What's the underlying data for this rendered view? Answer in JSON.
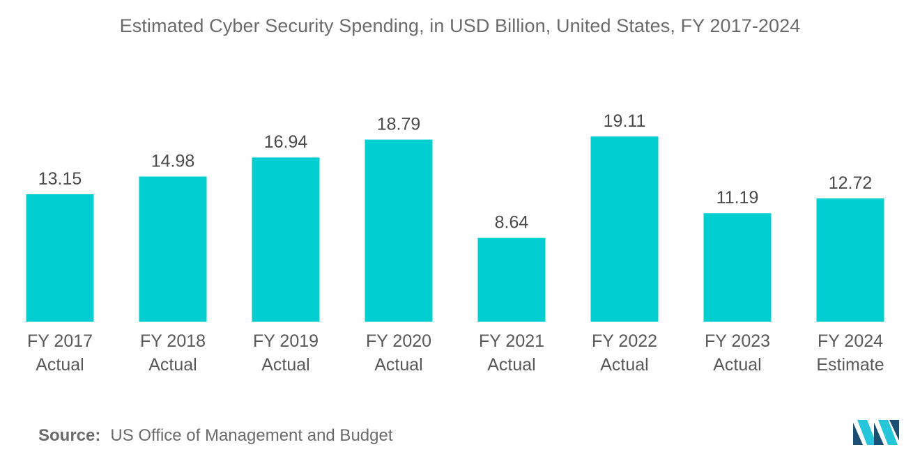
{
  "chart_data": {
    "type": "bar",
    "title": "Estimated Cyber Security Spending, in USD Billion, United States, FY 2017-2024",
    "categories": [
      [
        "FY 2017",
        "Actual"
      ],
      [
        "FY 2018",
        "Actual"
      ],
      [
        "FY 2019",
        "Actual"
      ],
      [
        "FY 2020",
        "Actual"
      ],
      [
        "FY 2021",
        "Actual"
      ],
      [
        "FY 2022",
        "Actual"
      ],
      [
        "FY 2023",
        "Actual"
      ],
      [
        "FY 2024",
        "Estimate"
      ]
    ],
    "values": [
      13.15,
      14.98,
      16.94,
      18.79,
      8.64,
      19.11,
      11.19,
      12.72
    ],
    "value_labels": [
      "13.15",
      "14.98",
      "16.94",
      "18.79",
      "8.64",
      "19.11",
      "11.19",
      "12.72"
    ],
    "xlabel": "",
    "ylabel": "",
    "ylim": [
      0,
      19.11
    ],
    "grid": false,
    "bar_color": "#00ced1"
  },
  "source": {
    "label": "Source:",
    "text": "US Office of Management and Budget"
  },
  "colors": {
    "bar": "#00ced1",
    "logo_dark": "#1b4f72",
    "logo_light": "#26c6da"
  }
}
